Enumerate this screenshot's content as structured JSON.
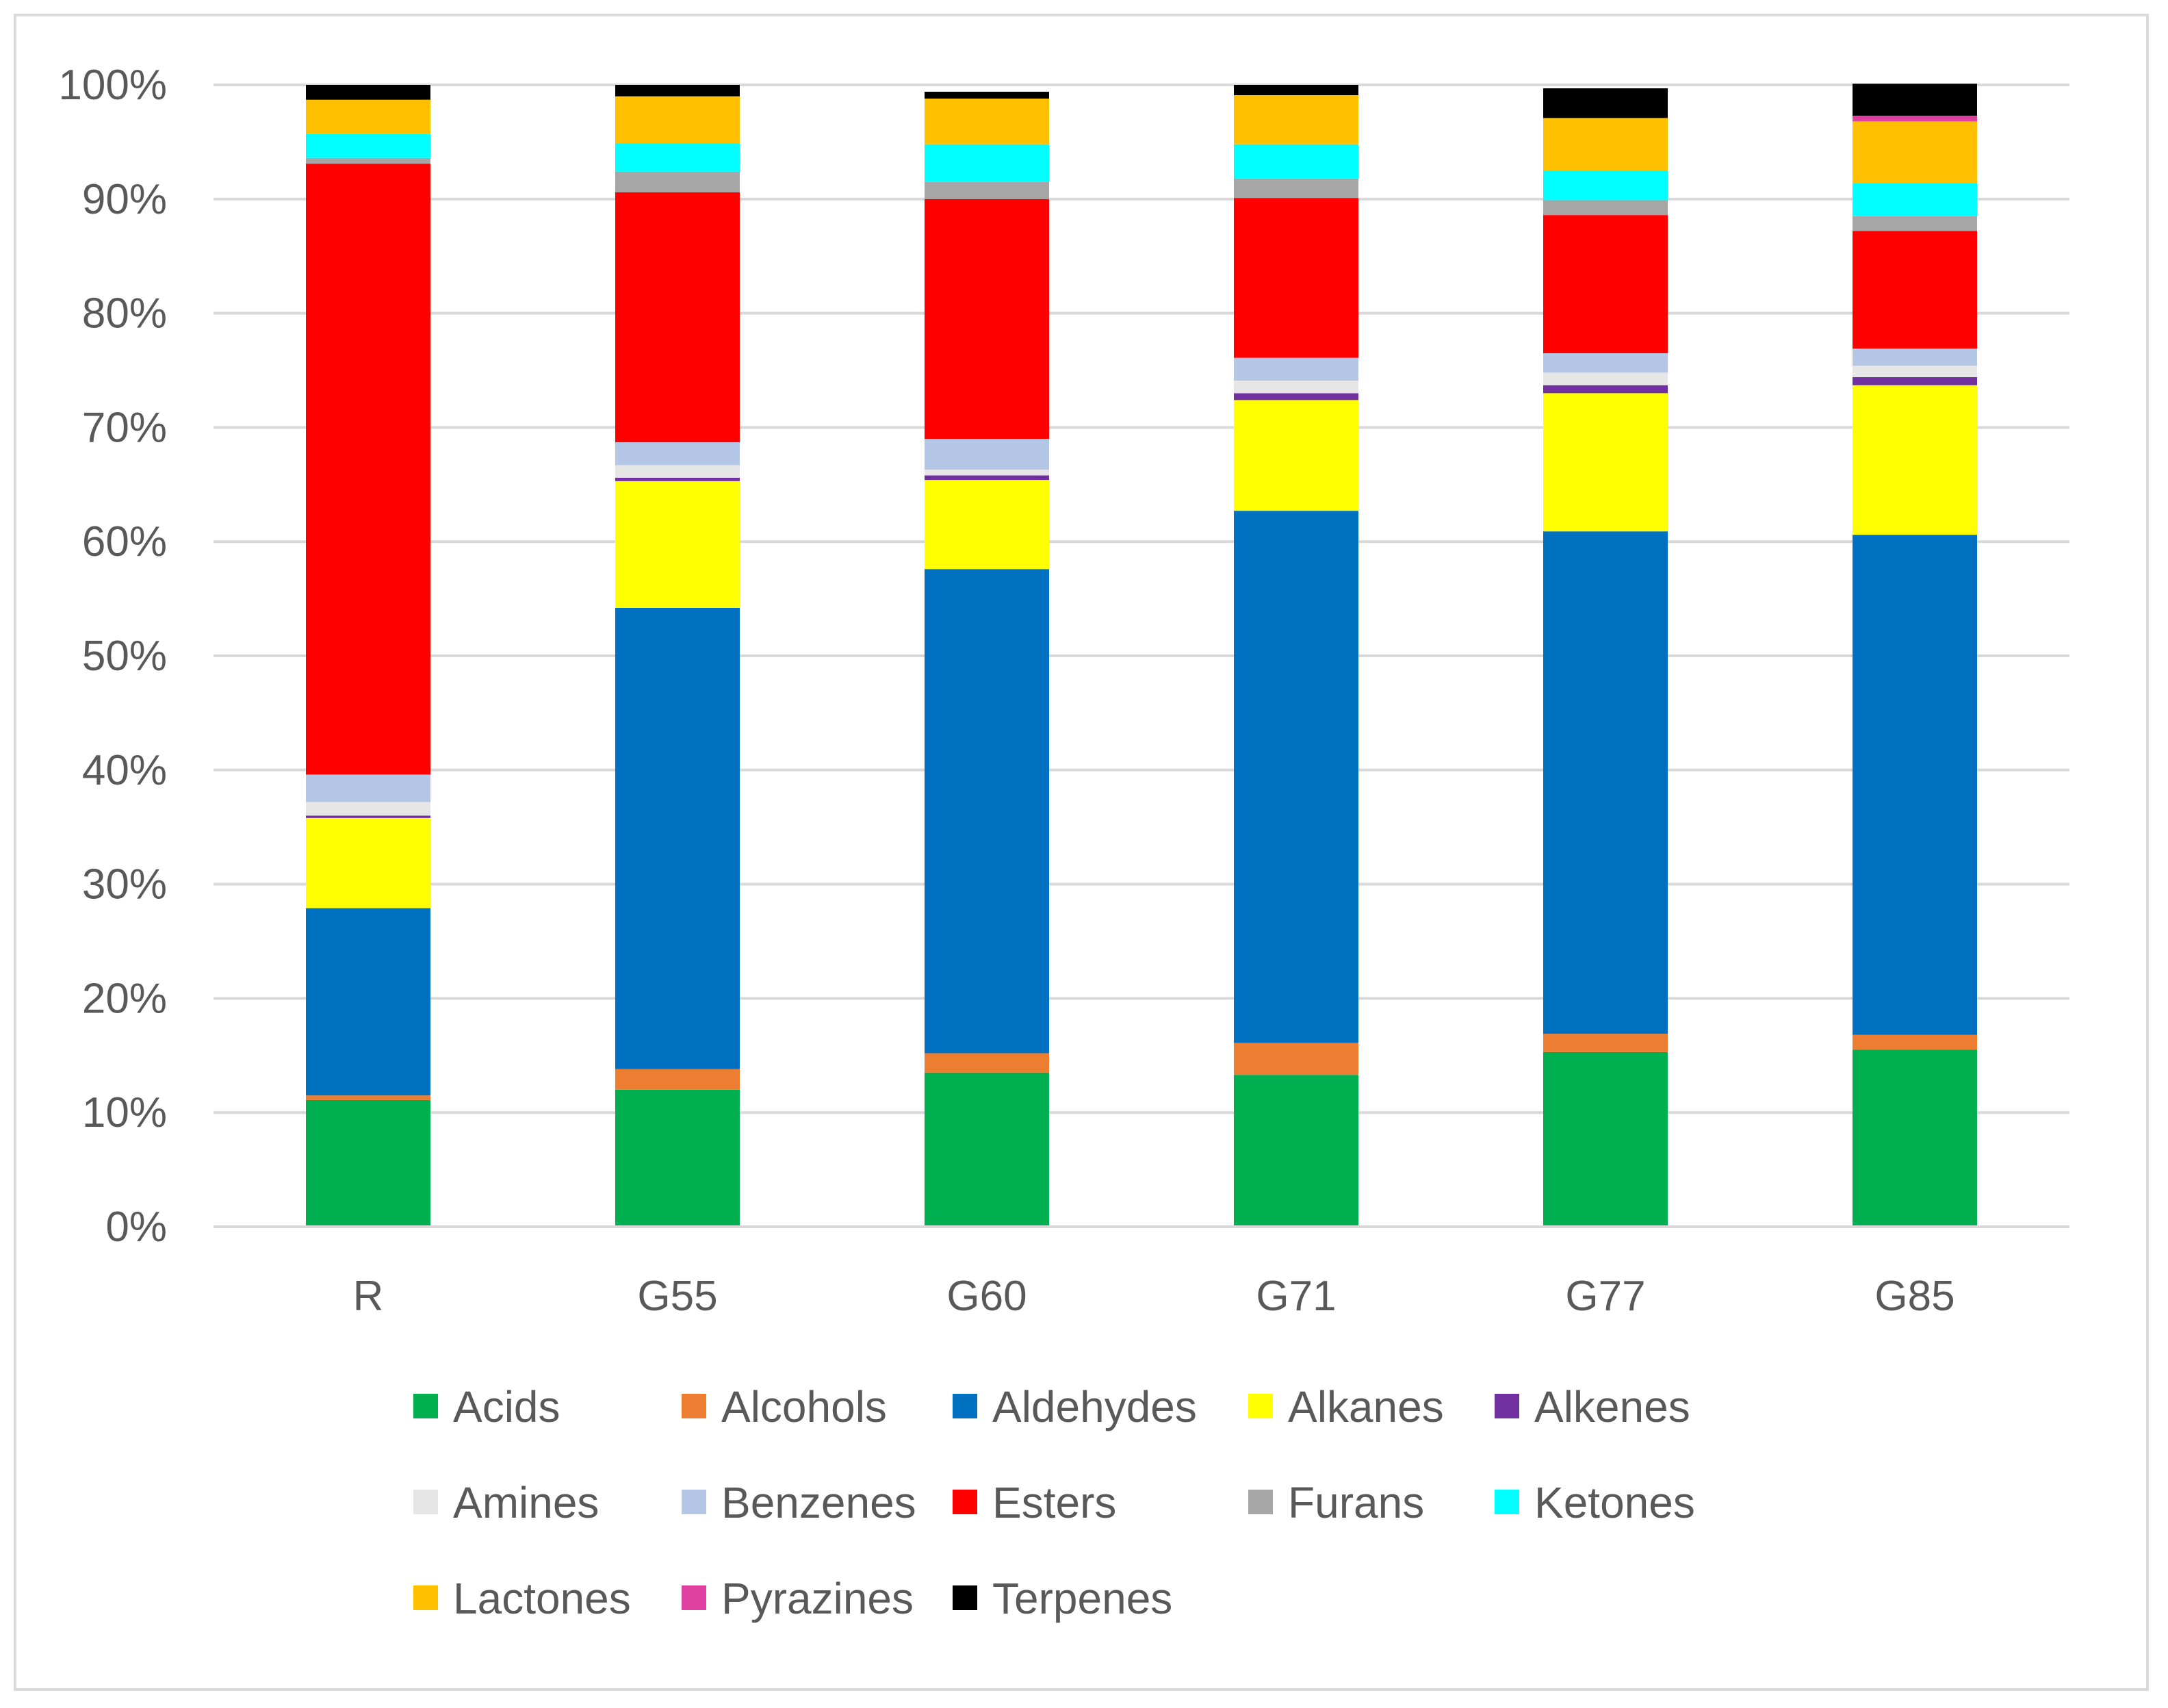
{
  "chart_data": {
    "type": "bar",
    "stacked": true,
    "percent": true,
    "categories": [
      "R",
      "G55",
      "G60",
      "G71",
      "G77",
      "G85"
    ],
    "ylim": [
      0,
      100
    ],
    "yticks": [
      0,
      10,
      20,
      30,
      40,
      50,
      60,
      70,
      80,
      90,
      100
    ],
    "ytick_labels": [
      "0%",
      "10%",
      "20%",
      "30%",
      "40%",
      "50%",
      "60%",
      "70%",
      "80%",
      "90%",
      "100%"
    ],
    "grid": true,
    "legend_position": "bottom",
    "title": "",
    "xlabel": "",
    "ylabel": "",
    "series": [
      {
        "name": "Acids",
        "color": "#00b050",
        "values": [
          11.1,
          12.0,
          13.5,
          13.3,
          15.3,
          15.5
        ]
      },
      {
        "name": "Alcohols",
        "color": "#ed7d31",
        "values": [
          0.4,
          1.8,
          1.7,
          2.8,
          1.6,
          1.3
        ]
      },
      {
        "name": "Aldehydes",
        "color": "#0070c0",
        "values": [
          16.4,
          40.4,
          42.4,
          46.6,
          44.0,
          43.8
        ]
      },
      {
        "name": "Alkanes",
        "color": "#ffff00",
        "values": [
          7.9,
          11.1,
          7.8,
          9.7,
          12.1,
          13.1
        ]
      },
      {
        "name": "Alkenes",
        "color": "#7030a0",
        "values": [
          0.2,
          0.3,
          0.4,
          0.6,
          0.7,
          0.7
        ]
      },
      {
        "name": "Amines",
        "color": "#e7e6e6",
        "values": [
          1.2,
          1.1,
          0.5,
          1.1,
          1.1,
          1.0
        ]
      },
      {
        "name": "Benzenes",
        "color": "#b4c7e7",
        "values": [
          2.4,
          2.0,
          2.7,
          2.0,
          1.7,
          1.5
        ]
      },
      {
        "name": "Esters",
        "color": "#ff0000",
        "values": [
          53.5,
          21.9,
          21.0,
          14.0,
          12.1,
          10.3
        ]
      },
      {
        "name": "Furans",
        "color": "#a6a6a6",
        "values": [
          0.5,
          1.8,
          1.5,
          1.7,
          1.3,
          1.3
        ]
      },
      {
        "name": "Ketones",
        "color": "#00ffff",
        "values": [
          2.1,
          2.5,
          3.3,
          3.0,
          2.6,
          2.9
        ]
      },
      {
        "name": "Lactones",
        "color": "#ffc000",
        "values": [
          3.0,
          4.1,
          4.0,
          4.3,
          4.6,
          5.4
        ]
      },
      {
        "name": "Pyrazines",
        "color": "#e040a0",
        "values": [
          0.0,
          0.0,
          0.0,
          0.0,
          0.0,
          0.5
        ]
      },
      {
        "name": "Terpenes",
        "color": "#000000",
        "values": [
          1.3,
          1.0,
          0.6,
          0.9,
          2.6,
          2.8
        ]
      }
    ]
  }
}
